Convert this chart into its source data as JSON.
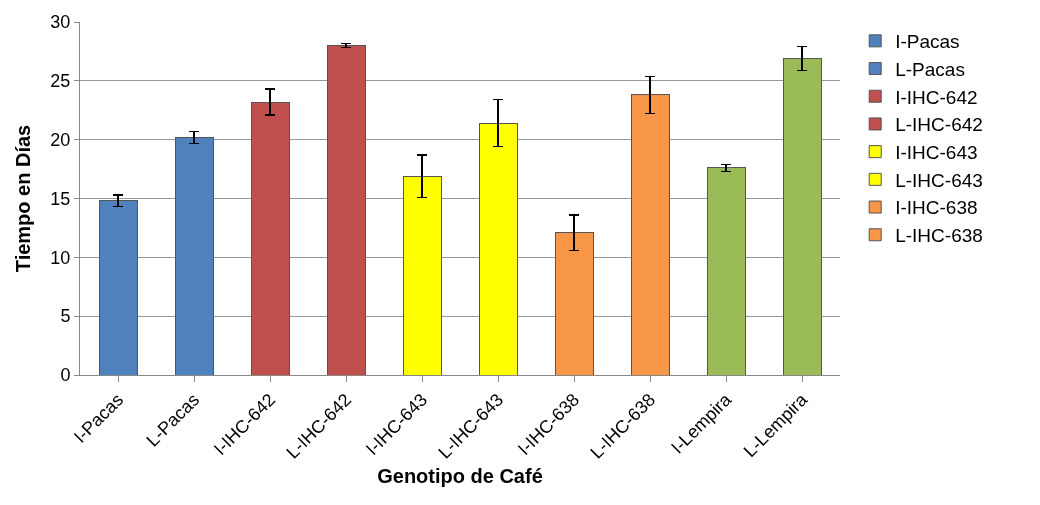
{
  "chart_data": {
    "type": "bar",
    "xlabel": "Genotipo de Café",
    "ylabel": "Tiempo en Días",
    "categories": [
      "I-Pacas",
      "L-Pacas",
      "I-IHC-642",
      "L-IHC-642",
      "I-IHC-643",
      "L-IHC-643",
      "I-IHC-638",
      "L-IHC-638",
      "I-Lempira",
      "L-Lempira"
    ],
    "stacked": true,
    "ylim": [
      0,
      30
    ],
    "yticks": [
      0,
      5,
      10,
      15,
      20,
      25,
      30
    ],
    "grid": "y",
    "legend": "right",
    "series": [
      {
        "name": "I-Pacas",
        "color": "#4f81bd",
        "values": [
          14.8,
          null,
          null,
          null,
          null,
          null,
          null,
          null,
          null,
          null
        ],
        "errors": [
          0.5,
          null,
          null,
          null,
          null,
          null,
          null,
          null,
          null,
          null
        ]
      },
      {
        "name": "L-Pacas",
        "color": "#4f81bd",
        "values": [
          null,
          20.2,
          null,
          null,
          null,
          null,
          null,
          null,
          null,
          null
        ],
        "errors": [
          null,
          0.5,
          null,
          null,
          null,
          null,
          null,
          null,
          null,
          null
        ]
      },
      {
        "name": "I-IHC-642",
        "color": "#c0504d",
        "values": [
          null,
          null,
          23.2,
          null,
          null,
          null,
          null,
          null,
          null,
          null
        ],
        "errors": [
          null,
          null,
          1.1,
          null,
          null,
          null,
          null,
          null,
          null,
          null
        ]
      },
      {
        "name": "L-IHC-642",
        "color": "#c0504d",
        "values": [
          null,
          null,
          null,
          28,
          null,
          null,
          null,
          null,
          null,
          null
        ],
        "errors": [
          null,
          null,
          null,
          0.15,
          null,
          null,
          null,
          null,
          null,
          null
        ]
      },
      {
        "name": "I-IHC-643",
        "color": "#ffff00",
        "values": [
          null,
          null,
          null,
          null,
          16.9,
          null,
          null,
          null,
          null,
          null
        ],
        "errors": [
          null,
          null,
          null,
          null,
          1.8,
          null,
          null,
          null,
          null,
          null
        ]
      },
      {
        "name": "L-IHC-643",
        "color": "#ffff00",
        "values": [
          null,
          null,
          null,
          null,
          null,
          21.4,
          null,
          null,
          null,
          null
        ],
        "errors": [
          null,
          null,
          null,
          null,
          null,
          2,
          null,
          null,
          null,
          null
        ]
      },
      {
        "name": "I-IHC-638",
        "color": "#f79646",
        "values": [
          null,
          null,
          null,
          null,
          null,
          null,
          12.1,
          null,
          null,
          null
        ],
        "errors": [
          null,
          null,
          null,
          null,
          null,
          null,
          1.5,
          null,
          null,
          null
        ]
      },
      {
        "name": "L-IHC-638",
        "color": "#f79646",
        "values": [
          null,
          null,
          null,
          null,
          null,
          null,
          null,
          23.8,
          null,
          null
        ],
        "errors": [
          null,
          null,
          null,
          null,
          null,
          null,
          null,
          1.6,
          null,
          null
        ]
      },
      {
        "color": "#9bbb59",
        "values": [
          null,
          null,
          null,
          null,
          null,
          null,
          null,
          null,
          17.6,
          null
        ],
        "errors": [
          null,
          null,
          null,
          null,
          null,
          null,
          null,
          null,
          0.3,
          null
        ]
      },
      {
        "color": "#9bbb59",
        "values": [
          null,
          null,
          null,
          null,
          null,
          null,
          null,
          null,
          null,
          26.9
        ],
        "errors": [
          null,
          null,
          null,
          null,
          null,
          null,
          null,
          null,
          null,
          1
        ]
      }
    ]
  }
}
